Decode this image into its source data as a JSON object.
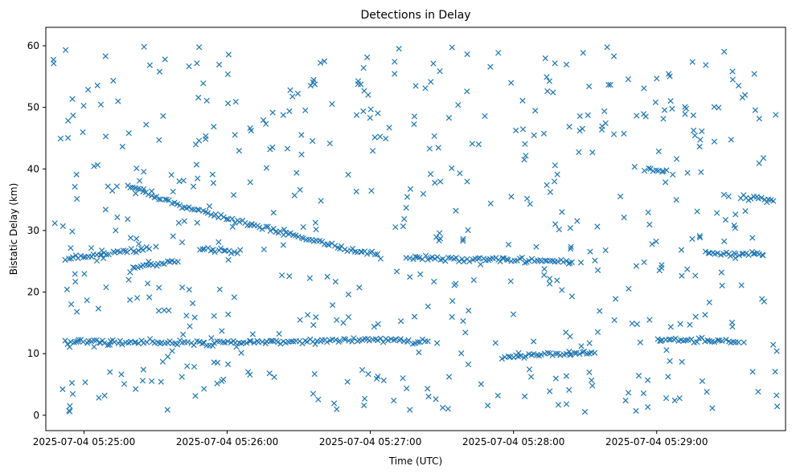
{
  "chart_data": {
    "type": "scatter",
    "title": "Detections in Delay",
    "xlabel": "Time (UTC)",
    "ylabel": "Bistatic Delay (km)",
    "marker": "x",
    "color": "#1f77b4",
    "grid": false,
    "legend": "none",
    "xlim": [
      "2025-07-04 05:24:44",
      "2025-07-04 05:29:54"
    ],
    "ylim": [
      -2.5,
      63
    ],
    "x_ticks": [
      "2025-07-04 05:25:00",
      "2025-07-04 05:26:00",
      "2025-07-04 05:27:00",
      "2025-07-04 05:28:00",
      "2025-07-04 05:29:00"
    ],
    "y_ticks": [
      0,
      10,
      20,
      30,
      40,
      50,
      60
    ],
    "series": [
      {
        "x_range": [
          "2025-07-04 05:24:47",
          "2025-07-04 05:29:51"
        ],
        "tracks": [
          {
            "points": [
              [
                "2025-07-04 05:25:18",
                37.5
              ],
              [
                "2025-07-04 05:25:30",
                35.5
              ],
              [
                "2025-07-04 05:25:45",
                33.5
              ],
              [
                "2025-07-04 05:26:05",
                31.5
              ],
              [
                "2025-07-04 05:26:20",
                30.0
              ],
              [
                "2025-07-04 05:26:35",
                28.5
              ],
              [
                "2025-07-04 05:26:50",
                27.0
              ],
              [
                "2025-07-04 05:27:05",
                25.8
              ]
            ]
          },
          {
            "points": [
              [
                "2025-07-04 05:24:52",
                12.0
              ],
              [
                "2025-07-04 05:25:50",
                11.7
              ],
              [
                "2025-07-04 05:27:05",
                12.3
              ],
              [
                "2025-07-04 05:27:25",
                11.8
              ]
            ]
          },
          {
            "points": [
              [
                "2025-07-04 05:25:48",
                27.0
              ],
              [
                "2025-07-04 05:26:05",
                26.5
              ]
            ]
          },
          {
            "points": [
              [
                "2025-07-04 05:24:52",
                25.5
              ],
              [
                "2025-07-04 05:25:28",
                27.0
              ]
            ]
          },
          {
            "points": [
              [
                "2025-07-04 05:27:15",
                25.5
              ],
              [
                "2025-07-04 05:28:25",
                25.0
              ]
            ]
          },
          {
            "points": [
              [
                "2025-07-04 05:27:55",
                9.5
              ],
              [
                "2025-07-04 05:28:35",
                10.2
              ]
            ]
          },
          {
            "points": [
              [
                "2025-07-04 05:29:00",
                12.3
              ],
              [
                "2025-07-04 05:29:35",
                12.0
              ]
            ]
          },
          {
            "points": [
              [
                "2025-07-04 05:29:20",
                26.5
              ],
              [
                "2025-07-04 05:29:45",
                26.0
              ]
            ]
          },
          {
            "points": [
              [
                "2025-07-04 05:29:35",
                35.5
              ],
              [
                "2025-07-04 05:29:50",
                35.0
              ]
            ]
          },
          {
            "points": [
              [
                "2025-07-04 05:28:55",
                40.0
              ],
              [
                "2025-07-04 05:29:05",
                39.5
              ]
            ]
          },
          {
            "points": [
              [
                "2025-07-04 05:25:20",
                24.0
              ],
              [
                "2025-07-04 05:25:40",
                25.0
              ]
            ]
          }
        ]
      }
    ]
  }
}
